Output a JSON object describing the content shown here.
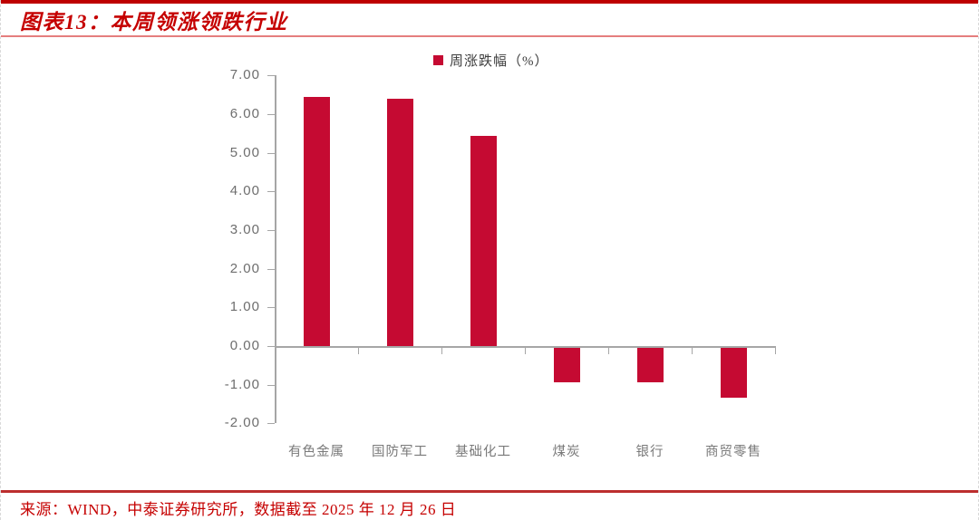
{
  "header": {
    "title": "图表13：本周领涨领跌行业"
  },
  "chart_data": {
    "type": "bar",
    "title": "图表13：本周领涨领跌行业",
    "legend": {
      "label": "周涨跌幅（%）",
      "position": "top-center",
      "marker": "square"
    },
    "categories": [
      "有色金属",
      "国防军工",
      "基础化工",
      "煤炭",
      "银行",
      "商贸零售"
    ],
    "values": [
      6.45,
      6.39,
      5.43,
      -0.9,
      -0.9,
      -1.3
    ],
    "xlabel": "",
    "ylabel": "",
    "ylim": [
      -2,
      7
    ],
    "ytick_step": 1.0,
    "ytick_labels": [
      "7.00",
      "6.00",
      "5.00",
      "4.00",
      "3.00",
      "2.00",
      "1.00",
      "0.00",
      "-1.00",
      "-2.00"
    ],
    "grid": false,
    "colors": {
      "bar": "#C50A32",
      "axis": "#A6A6A6",
      "tick_label": "#6E6E6E",
      "category_label": "#7A7A7A",
      "legend_text": "#3D3D3D"
    }
  },
  "footer": {
    "source": "来源：WIND，中泰证券研究所，数据截至 2025 年 12 月 26 日"
  },
  "theme": {
    "accent_red": "#BE0000",
    "title_red": "#C50000",
    "underline_pink": "#E57E7E",
    "footer_line_red": "#BC2E2E"
  }
}
